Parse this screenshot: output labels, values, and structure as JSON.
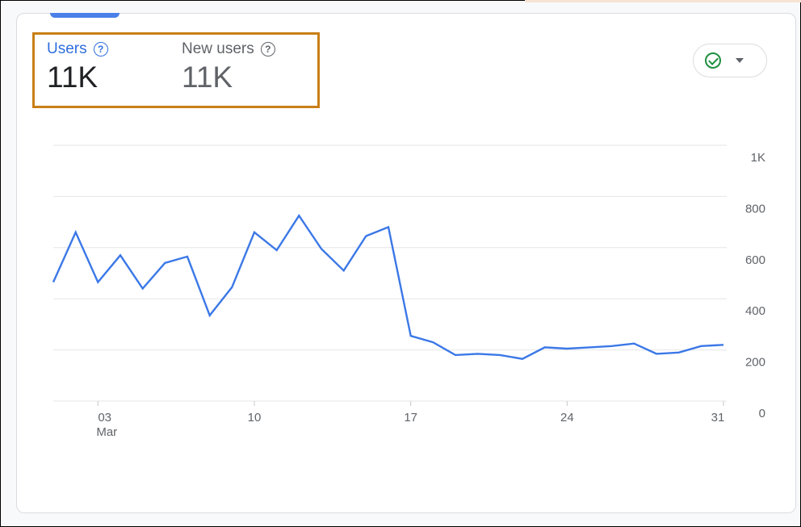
{
  "metrics": [
    {
      "label": "Users",
      "value": "11K",
      "active": true
    },
    {
      "label": "New users",
      "value": "11K",
      "active": false
    }
  ],
  "help_icon": "help-circle-icon",
  "compare_button": {
    "icons": [
      "check-circle-icon",
      "caret-down-icon"
    ]
  },
  "colors": {
    "line": "#3b78e7",
    "accent": "#c97f17",
    "check": "#1e8e3e"
  },
  "chart_data": {
    "type": "line",
    "x": [
      "01 Mar",
      "02 Mar",
      "03 Mar",
      "04 Mar",
      "05 Mar",
      "06 Mar",
      "07 Mar",
      "08 Mar",
      "09 Mar",
      "10 Mar",
      "11 Mar",
      "12 Mar",
      "13 Mar",
      "14 Mar",
      "15 Mar",
      "16 Mar",
      "17 Mar",
      "18 Mar",
      "19 Mar",
      "20 Mar",
      "21 Mar",
      "22 Mar",
      "23 Mar",
      "24 Mar",
      "25 Mar",
      "26 Mar",
      "27 Mar",
      "28 Mar",
      "29 Mar",
      "30 Mar",
      "31 Mar"
    ],
    "series": [
      {
        "values": [
          465,
          660,
          465,
          570,
          440,
          540,
          565,
          335,
          445,
          660,
          590,
          725,
          595,
          510,
          645,
          680,
          255,
          230,
          180,
          185,
          180,
          165,
          210,
          205,
          210,
          215,
          225,
          185,
          190,
          215,
          220
        ]
      }
    ],
    "x_tick_labels": [
      "03",
      "10",
      "17",
      "24",
      "31"
    ],
    "x_tick_sublabel": "Mar",
    "y_tick_labels": [
      "0",
      "200",
      "400",
      "600",
      "800",
      "1K"
    ],
    "ylim": [
      0,
      1000
    ],
    "grid": true
  }
}
